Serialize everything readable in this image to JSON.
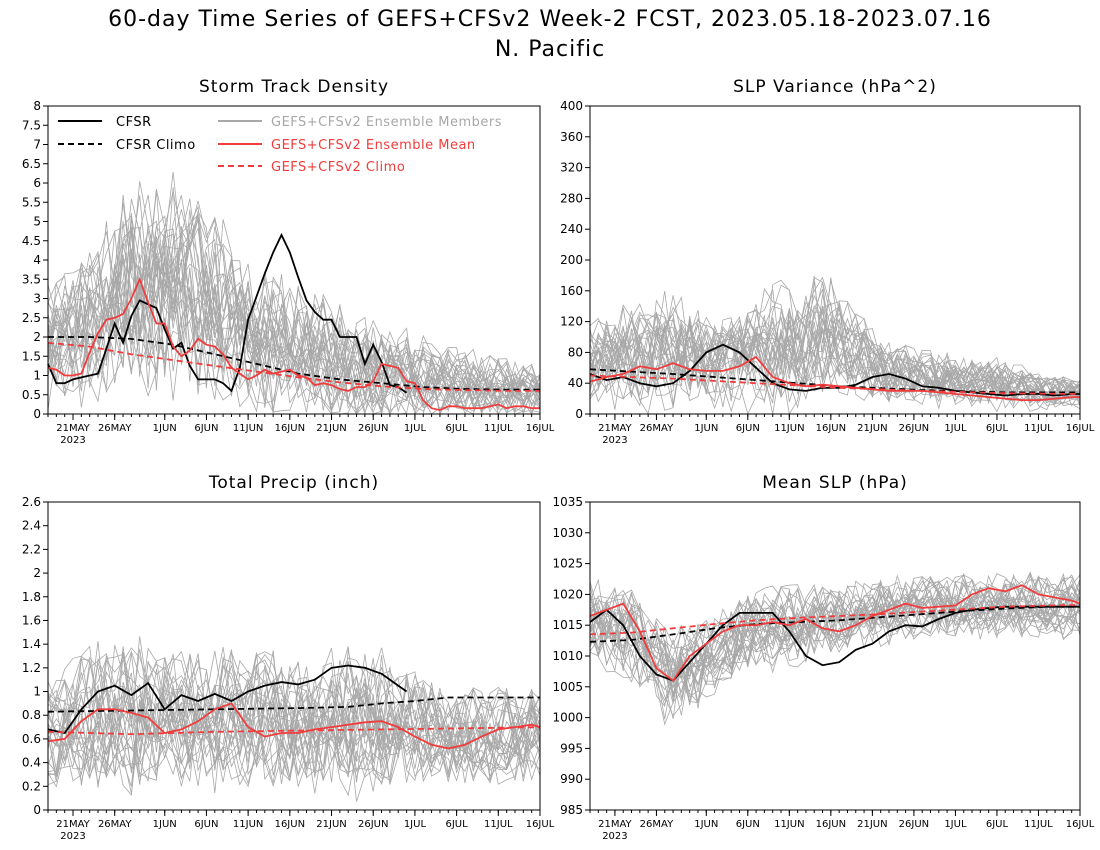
{
  "title": {
    "line1": "60-day Time Series of GEFS+CFSv2 Week-2 FCST, 2023.05.18-2023.07.16",
    "line2": "N. Pacific"
  },
  "x_axis": {
    "tick_labels": [
      "21MAY",
      "26MAY",
      "1JUN",
      "6JUN",
      "11JUN",
      "16JUN",
      "21JUN",
      "26JUN",
      "1JUL",
      "6JUL",
      "11JUL",
      "16JUL"
    ],
    "tick_days": [
      3,
      8,
      14,
      19,
      24,
      29,
      34,
      39,
      44,
      49,
      54,
      59
    ],
    "year_label": "2023"
  },
  "legend": {
    "cfsr": "CFSR",
    "cfsr_climo": "CFSR Climo",
    "members": "GEFS+CFSv2 Ensemble Members",
    "ens_mean": "GEFS+CFSv2 Ensemble Mean",
    "gefs_climo": "GEFS+CFSv2 Climo"
  },
  "colors": {
    "cfsr": "#000000",
    "cfsr_climo": "#000000",
    "members": "#a8a8a8",
    "ens_mean": "#f03c3c",
    "gefs_climo": "#f03c3c"
  },
  "chart_data": [
    {
      "id": "storm",
      "type": "line",
      "title": "Storm Track Density",
      "ylim": [
        0,
        8
      ],
      "yticks": [
        "0",
        "0.5",
        "1",
        "1.5",
        "2",
        "2.5",
        "3",
        "3.5",
        "4",
        "4.5",
        "5",
        "5.5",
        "6",
        "6.5",
        "7",
        "7.5",
        "8"
      ],
      "x_unit": "days since 18MAY2023",
      "x_range": [
        0,
        59
      ],
      "legend_shown": true,
      "members_envelope": {
        "center": [
          1.8,
          2.4,
          3.2,
          3.4,
          3.0,
          2.0,
          1.8,
          1.4,
          1.1,
          0.9,
          0.8,
          0.7,
          0.6
        ],
        "spread": [
          1.2,
          1.6,
          2.1,
          2.1,
          1.9,
          1.4,
          1.3,
          1.2,
          1.0,
          0.9,
          0.7,
          0.6,
          0.5
        ],
        "count": 30
      },
      "series": [
        {
          "name": "CFSR",
          "style": "solid",
          "color": "cfsr",
          "x": [
            0,
            1,
            2,
            3,
            4,
            5,
            6,
            7,
            8,
            9,
            10,
            11,
            12,
            13,
            14,
            15,
            16,
            17,
            18,
            19,
            20,
            21,
            22,
            23,
            24,
            25,
            26,
            27,
            28,
            29,
            30,
            31,
            32,
            33,
            34,
            35,
            36,
            37,
            38,
            39,
            40,
            41,
            42,
            43
          ],
          "y": [
            1.3,
            0.8,
            0.8,
            0.9,
            0.95,
            1.0,
            1.05,
            1.7,
            2.35,
            1.85,
            2.55,
            2.95,
            2.85,
            2.75,
            2.2,
            1.7,
            1.85,
            1.25,
            0.9,
            0.9,
            0.9,
            0.8,
            0.6,
            1.2,
            2.45,
            3.05,
            3.65,
            4.2,
            4.65,
            4.2,
            3.55,
            2.95,
            2.65,
            2.45,
            2.45,
            2.0,
            2.0,
            2.0,
            1.3,
            1.8,
            1.35,
            0.75,
            0.7,
            0.55
          ]
        },
        {
          "name": "CFSR Climo",
          "style": "dashed",
          "color": "cfsr_climo",
          "x": [
            0,
            5,
            10,
            15,
            20,
            25,
            30,
            35,
            40,
            45,
            50,
            55,
            59
          ],
          "y": [
            2.0,
            2.0,
            1.95,
            1.8,
            1.55,
            1.3,
            1.05,
            0.9,
            0.8,
            0.7,
            0.65,
            0.63,
            0.63
          ]
        },
        {
          "name": "GEFS+CFSv2 Ensemble Mean",
          "style": "solid",
          "color": "ens_mean",
          "x": [
            0,
            1,
            2,
            3,
            4,
            5,
            6,
            7,
            8,
            9,
            10,
            11,
            12,
            13,
            14,
            15,
            16,
            17,
            18,
            19,
            20,
            21,
            22,
            23,
            24,
            25,
            26,
            27,
            28,
            29,
            30,
            31,
            32,
            33,
            34,
            35,
            36,
            37,
            38,
            39,
            40,
            41,
            42,
            43,
            44,
            45,
            46,
            47,
            48,
            49,
            50,
            51,
            52,
            53,
            54,
            55,
            56,
            57,
            58,
            59
          ],
          "y": [
            1.2,
            1.15,
            1.0,
            1.0,
            1.05,
            1.6,
            2.1,
            2.45,
            2.5,
            2.6,
            3.0,
            3.5,
            2.9,
            2.35,
            2.35,
            1.75,
            1.5,
            1.65,
            1.95,
            1.8,
            1.75,
            1.55,
            1.2,
            1.05,
            0.9,
            1.0,
            1.15,
            1.05,
            1.1,
            1.15,
            1.0,
            0.95,
            0.75,
            0.8,
            0.75,
            0.65,
            0.6,
            0.7,
            0.7,
            0.85,
            1.3,
            1.25,
            1.2,
            0.85,
            0.8,
            0.35,
            0.15,
            0.1,
            0.2,
            0.2,
            0.15,
            0.15,
            0.15,
            0.2,
            0.25,
            0.15,
            0.2,
            0.2,
            0.15,
            0.15
          ]
        },
        {
          "name": "GEFS+CFSv2 Climo",
          "style": "dashed",
          "color": "gefs_climo",
          "x": [
            0,
            5,
            10,
            15,
            20,
            25,
            30,
            35,
            40,
            45,
            50,
            55,
            59
          ],
          "y": [
            1.85,
            1.75,
            1.55,
            1.4,
            1.25,
            1.1,
            0.95,
            0.82,
            0.72,
            0.65,
            0.62,
            0.6,
            0.6
          ]
        }
      ]
    },
    {
      "id": "slpvar",
      "type": "line",
      "title": "SLP Variance (hPa^2)",
      "ylim": [
        0,
        400
      ],
      "yticks": [
        "0",
        "40",
        "80",
        "120",
        "160",
        "200",
        "240",
        "280",
        "320",
        "360",
        "400"
      ],
      "x_unit": "days since 18MAY2023",
      "x_range": [
        0,
        59
      ],
      "legend_shown": false,
      "members_envelope": {
        "center": [
          60,
          70,
          75,
          65,
          70,
          90,
          90,
          55,
          45,
          40,
          38,
          30,
          25
        ],
        "spread": [
          40,
          55,
          60,
          45,
          55,
          70,
          60,
          35,
          30,
          25,
          25,
          20,
          15
        ],
        "count": 30
      },
      "series": [
        {
          "name": "CFSR",
          "style": "solid",
          "color": "cfsr",
          "x": [
            0,
            2,
            4,
            6,
            8,
            10,
            12,
            14,
            16,
            18,
            20,
            22,
            24,
            26,
            28,
            30,
            32,
            34,
            36,
            38,
            40,
            42,
            44,
            46,
            48,
            50,
            52,
            54,
            56,
            58,
            59
          ],
          "y": [
            52,
            44,
            48,
            40,
            36,
            40,
            56,
            80,
            90,
            80,
            60,
            40,
            32,
            30,
            34,
            34,
            38,
            48,
            52,
            46,
            36,
            34,
            30,
            28,
            26,
            24,
            26,
            26,
            24,
            26,
            26
          ]
        },
        {
          "name": "CFSR Climo",
          "style": "dashed",
          "color": "cfsr_climo",
          "x": [
            0,
            10,
            20,
            30,
            40,
            50,
            59
          ],
          "y": [
            58,
            52,
            44,
            36,
            31,
            28,
            28
          ]
        },
        {
          "name": "GEFS+CFSv2 Ensemble Mean",
          "style": "solid",
          "color": "ens_mean",
          "x": [
            0,
            2,
            4,
            6,
            8,
            10,
            12,
            14,
            16,
            18,
            20,
            22,
            24,
            26,
            28,
            30,
            32,
            34,
            36,
            38,
            40,
            42,
            44,
            46,
            48,
            50,
            52,
            54,
            56,
            58,
            59
          ],
          "y": [
            42,
            48,
            52,
            62,
            58,
            66,
            58,
            56,
            56,
            62,
            74,
            48,
            40,
            36,
            38,
            36,
            34,
            32,
            30,
            30,
            30,
            28,
            26,
            24,
            22,
            20,
            18,
            18,
            20,
            22,
            22
          ]
        },
        {
          "name": "GEFS+CFSv2 Climo",
          "style": "dashed",
          "color": "gefs_climo",
          "x": [
            0,
            10,
            20,
            30,
            40,
            50,
            59
          ],
          "y": [
            50,
            46,
            40,
            34,
            30,
            27,
            26
          ]
        }
      ]
    },
    {
      "id": "precip",
      "type": "line",
      "title": "Total Precip (inch)",
      "ylim": [
        0,
        2.6
      ],
      "yticks": [
        "0",
        "0.2",
        "0.4",
        "0.6",
        "0.8",
        "1",
        "1.2",
        "1.4",
        "1.6",
        "1.8",
        "2",
        "2.2",
        "2.4",
        "2.6"
      ],
      "x_unit": "days since 18MAY2023",
      "x_range": [
        0,
        59
      ],
      "legend_shown": false,
      "members_envelope": {
        "center": [
          0.65,
          0.75,
          0.8,
          0.75,
          0.75,
          0.8,
          0.7,
          0.72,
          0.75,
          0.68,
          0.6,
          0.62,
          0.65
        ],
        "spread": [
          0.35,
          0.45,
          0.5,
          0.4,
          0.45,
          0.45,
          0.4,
          0.45,
          0.45,
          0.35,
          0.3,
          0.3,
          0.3
        ],
        "count": 30
      },
      "series": [
        {
          "name": "CFSR",
          "style": "solid",
          "color": "cfsr",
          "x": [
            0,
            2,
            4,
            6,
            8,
            10,
            12,
            14,
            16,
            18,
            20,
            22,
            24,
            26,
            28,
            30,
            32,
            34,
            36,
            38,
            40,
            42,
            43
          ],
          "y": [
            0.68,
            0.65,
            0.85,
            1.0,
            1.05,
            0.97,
            1.07,
            0.85,
            0.97,
            0.92,
            0.98,
            0.92,
            1.0,
            1.05,
            1.08,
            1.06,
            1.1,
            1.2,
            1.22,
            1.2,
            1.15,
            1.05,
            1.0
          ]
        },
        {
          "name": "CFSR Climo",
          "style": "dashed",
          "color": "cfsr_climo",
          "x": [
            0,
            10,
            20,
            30,
            36,
            40,
            44,
            48,
            59
          ],
          "y": [
            0.83,
            0.84,
            0.85,
            0.86,
            0.87,
            0.9,
            0.92,
            0.95,
            0.95
          ]
        },
        {
          "name": "GEFS+CFSv2 Ensemble Mean",
          "style": "solid",
          "color": "ens_mean",
          "x": [
            0,
            2,
            4,
            6,
            8,
            10,
            12,
            14,
            16,
            18,
            20,
            22,
            24,
            26,
            28,
            30,
            32,
            34,
            36,
            38,
            40,
            42,
            44,
            46,
            48,
            50,
            52,
            54,
            56,
            58,
            59
          ],
          "y": [
            0.58,
            0.6,
            0.75,
            0.85,
            0.85,
            0.82,
            0.78,
            0.65,
            0.68,
            0.75,
            0.85,
            0.9,
            0.7,
            0.62,
            0.65,
            0.65,
            0.68,
            0.7,
            0.72,
            0.74,
            0.75,
            0.7,
            0.62,
            0.55,
            0.52,
            0.55,
            0.62,
            0.68,
            0.7,
            0.72,
            0.7
          ]
        },
        {
          "name": "GEFS+CFSv2 Climo",
          "style": "dashed",
          "color": "gefs_climo",
          "x": [
            0,
            10,
            20,
            30,
            40,
            50,
            59
          ],
          "y": [
            0.66,
            0.64,
            0.66,
            0.67,
            0.68,
            0.69,
            0.7
          ]
        }
      ]
    },
    {
      "id": "mslp",
      "type": "line",
      "title": "Mean SLP (hPa)",
      "ylim": [
        985,
        1035
      ],
      "yticks": [
        "985",
        "990",
        "995",
        "1000",
        "1005",
        "1010",
        "1015",
        "1020",
        "1025",
        "1030",
        "1035"
      ],
      "x_unit": "days since 18MAY2023",
      "x_range": [
        0,
        59
      ],
      "legend_shown": false,
      "members_envelope": {
        "center": [
          1016,
          1014,
          1006,
          1010,
          1014,
          1015,
          1016,
          1017,
          1018,
          1018,
          1018,
          1018,
          1018
        ],
        "spread": [
          5,
          6,
          6,
          5,
          5,
          5,
          4,
          4,
          4,
          4,
          4,
          4,
          4
        ],
        "count": 30
      },
      "series": [
        {
          "name": "CFSR",
          "style": "solid",
          "color": "cfsr",
          "x": [
            0,
            2,
            4,
            6,
            8,
            10,
            12,
            14,
            16,
            18,
            20,
            22,
            24,
            26,
            28,
            30,
            32,
            34,
            36,
            38,
            40,
            42,
            44,
            46,
            48,
            50,
            52,
            54,
            56,
            58,
            59
          ],
          "y": [
            1015.5,
            1017.5,
            1015,
            1010,
            1007,
            1006,
            1009,
            1012,
            1015,
            1017,
            1017,
            1017,
            1014,
            1010,
            1008.5,
            1009,
            1011,
            1012,
            1014,
            1015,
            1014.8,
            1016,
            1017,
            1017.5,
            1017.8,
            1018,
            1018,
            1018,
            1018,
            1018,
            1018
          ]
        },
        {
          "name": "CFSR Climo",
          "style": "dashed",
          "color": "cfsr_climo",
          "x": [
            0,
            5,
            10,
            15,
            20,
            25,
            30,
            35,
            40,
            45,
            50,
            55,
            59
          ],
          "y": [
            1012.3,
            1012.6,
            1013.5,
            1014.5,
            1015.2,
            1015.5,
            1015.8,
            1016.3,
            1016.8,
            1017.3,
            1017.7,
            1018,
            1018
          ]
        },
        {
          "name": "GEFS+CFSv2 Ensemble Mean",
          "style": "solid",
          "color": "ens_mean",
          "x": [
            0,
            2,
            4,
            6,
            8,
            10,
            12,
            14,
            16,
            18,
            20,
            22,
            24,
            26,
            28,
            30,
            32,
            34,
            36,
            38,
            40,
            42,
            44,
            46,
            48,
            50,
            52,
            54,
            56,
            58,
            59
          ],
          "y": [
            1016.5,
            1017.5,
            1018.5,
            1014,
            1008,
            1006,
            1010,
            1012,
            1014,
            1015,
            1015,
            1015.5,
            1015,
            1016,
            1014.5,
            1014,
            1015,
            1016.5,
            1017.5,
            1018.5,
            1017.8,
            1018,
            1018.2,
            1020,
            1021,
            1020.5,
            1021.5,
            1020,
            1019.5,
            1019,
            1018.5
          ]
        },
        {
          "name": "GEFS+CFSv2 Climo",
          "style": "dashed",
          "color": "gefs_climo",
          "x": [
            0,
            5,
            10,
            15,
            20,
            25,
            30,
            35,
            40,
            45,
            50,
            55,
            59
          ],
          "y": [
            1013.5,
            1013.8,
            1014.5,
            1015.2,
            1015.8,
            1016.2,
            1016.5,
            1016.8,
            1017.2,
            1017.6,
            1018,
            1018.2,
            1018.3
          ]
        }
      ]
    }
  ]
}
